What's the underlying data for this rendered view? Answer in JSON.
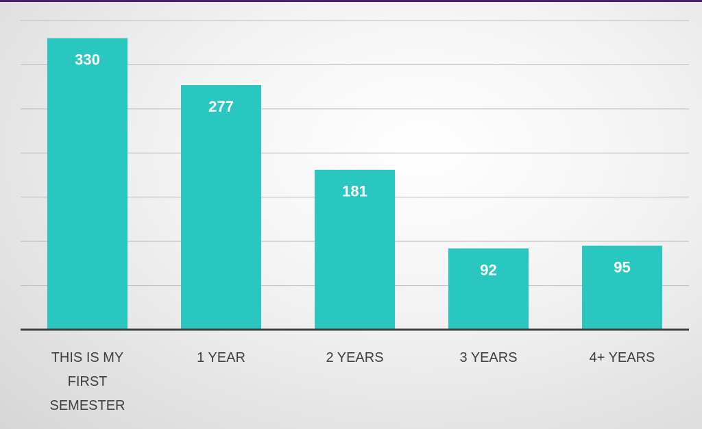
{
  "chart_data": {
    "type": "bar",
    "categories": [
      "THIS IS MY FIRST SEMESTER",
      "1 YEAR",
      "2 YEARS",
      "3 YEARS",
      "4+ YEARS"
    ],
    "values": [
      330,
      277,
      181,
      92,
      95
    ],
    "color": "#29c7bf",
    "ylim": [
      0,
      350
    ],
    "yticks": [
      0,
      50,
      100,
      150,
      200,
      250,
      300,
      350
    ],
    "grid": true
  }
}
